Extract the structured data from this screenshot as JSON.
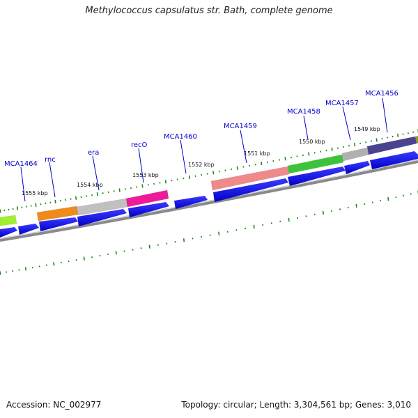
{
  "title": "Methylococcus capsulatus str. Bath, complete genome",
  "footer": {
    "accession": "Accession: NC_002977",
    "summary": "Topology: circular; Length: 3,304,561 bp; Genes: 3,010"
  },
  "colors": {
    "cds_arrow": "#0000ee",
    "backbone": "#808080",
    "tick": "#1a8a1a",
    "gene_label": "#0000cc"
  },
  "kbp_labels": [
    "1549 kbp",
    "1550 kbp",
    "1551 kbp",
    "1552 kbp",
    "1553 kbp",
    "1554 kbp",
    "1555 kbp"
  ],
  "gene_labels": [
    "MCA1456",
    "MCA1457",
    "MCA1458",
    "MCA1459",
    "MCA1460",
    "recO",
    "era",
    "rnc",
    "MCA1464"
  ],
  "feature_colors": [
    "#4a4490",
    "#b0b0b0",
    "#3bc43b",
    "#f08a8a",
    "#ee1a9a",
    "#c0c0c0",
    "#f08a1a",
    "#a0f030"
  ]
}
